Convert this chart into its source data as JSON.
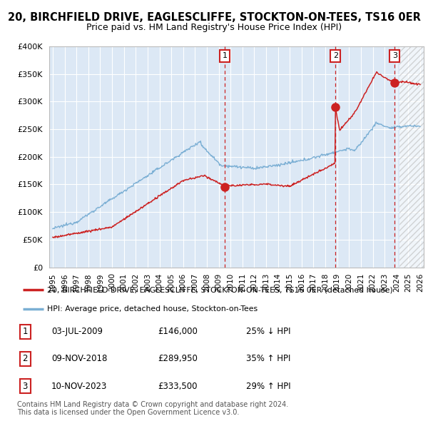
{
  "title": "20, BIRCHFIELD DRIVE, EAGLESCLIFFE, STOCKTON-ON-TEES, TS16 0ER",
  "subtitle": "Price paid vs. HM Land Registry's House Price Index (HPI)",
  "ytick_values": [
    0,
    50000,
    100000,
    150000,
    200000,
    250000,
    300000,
    350000,
    400000
  ],
  "ylim": [
    0,
    400000
  ],
  "xlim_start": 1994.7,
  "xlim_end": 2026.3,
  "xtick_years": [
    1995,
    1996,
    1997,
    1998,
    1999,
    2000,
    2001,
    2002,
    2003,
    2004,
    2005,
    2006,
    2007,
    2008,
    2009,
    2010,
    2011,
    2012,
    2013,
    2014,
    2015,
    2016,
    2017,
    2018,
    2019,
    2020,
    2021,
    2022,
    2023,
    2024,
    2025,
    2026
  ],
  "sale_dates": [
    "03-JUL-2009",
    "09-NOV-2018",
    "10-NOV-2023"
  ],
  "sale_years_decimal": [
    2009.5,
    2018.85,
    2023.85
  ],
  "sale_prices": [
    146000,
    289950,
    333500
  ],
  "sale_labels": [
    "1",
    "2",
    "3"
  ],
  "sale_notes": [
    "25% ↓ HPI",
    "35% ↑ HPI",
    "29% ↑ HPI"
  ],
  "line_color_hpi": "#7bafd4",
  "line_color_price": "#cc2222",
  "marker_color_price": "#cc2222",
  "vline_color": "#cc2222",
  "bg_color": "#dce8f5",
  "legend_label_price": "20, BIRCHFIELD DRIVE, EAGLESCLIFFE, STOCKTON-ON-TEES, TS16 0ER (detached house)",
  "legend_label_hpi": "HPI: Average price, detached house, Stockton-on-Tees",
  "footer_text": "Contains HM Land Registry data © Crown copyright and database right 2024.\nThis data is licensed under the Open Government Licence v3.0.",
  "future_cutoff": 2024.25
}
